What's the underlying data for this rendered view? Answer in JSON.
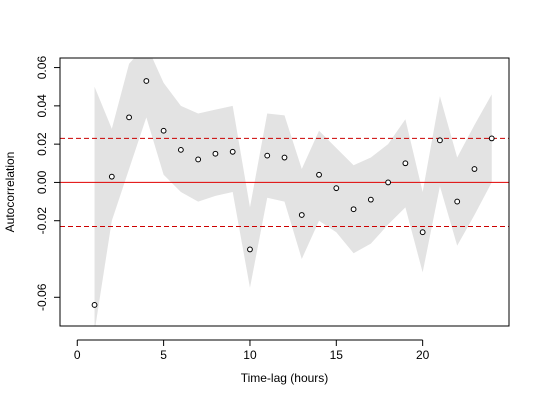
{
  "chart_data": {
    "type": "scatter",
    "title": "",
    "xlabel": "Time-lag (hours)",
    "ylabel": "Autocorrelation",
    "xlim": [
      -1,
      25
    ],
    "ylim": [
      -0.075,
      0.065
    ],
    "x_ticks": [
      0,
      5,
      10,
      15,
      20
    ],
    "x_tick_labels": [
      "0",
      "5",
      "10",
      "15",
      "20"
    ],
    "y_ticks": [
      -0.06,
      -0.02,
      0.0,
      0.02,
      0.04,
      0.06
    ],
    "y_tick_labels": [
      "-0.06",
      "-0.02",
      "0.00",
      "0.02",
      "0.04",
      "0.06"
    ],
    "grid": false,
    "legend": "none",
    "points": {
      "x": [
        1,
        2,
        3,
        4,
        5,
        6,
        7,
        8,
        9,
        10,
        11,
        12,
        13,
        14,
        15,
        16,
        17,
        18,
        19,
        20,
        21,
        22,
        23,
        24
      ],
      "y": [
        -0.064,
        0.003,
        0.034,
        0.053,
        0.027,
        0.017,
        0.012,
        0.015,
        0.016,
        -0.035,
        0.014,
        0.013,
        -0.017,
        0.004,
        -0.003,
        -0.014,
        -0.009,
        0.0,
        0.01,
        -0.026,
        0.022,
        -0.01,
        0.007,
        0.023
      ]
    },
    "band": {
      "upper": [
        0.05,
        0.028,
        0.062,
        0.072,
        0.052,
        0.04,
        0.036,
        0.038,
        0.04,
        -0.013,
        0.036,
        0.035,
        0.007,
        0.027,
        0.018,
        0.009,
        0.013,
        0.02,
        0.033,
        -0.005,
        0.045,
        0.013,
        0.03,
        0.046
      ],
      "lower": [
        -0.078,
        -0.02,
        0.007,
        0.034,
        0.004,
        -0.005,
        -0.01,
        -0.007,
        -0.005,
        -0.055,
        -0.008,
        -0.01,
        -0.04,
        -0.02,
        -0.026,
        -0.037,
        -0.032,
        -0.022,
        -0.013,
        -0.047,
        -0.002,
        -0.033,
        -0.017,
        0.0
      ]
    },
    "reference_lines": {
      "zero": 0.0,
      "upper_bound": 0.023,
      "lower_bound": -0.023
    },
    "colors": {
      "band": "#e3e3e3",
      "zero_line": "#e00000",
      "bound_line": "#cc0000",
      "points": "#000000"
    }
  }
}
